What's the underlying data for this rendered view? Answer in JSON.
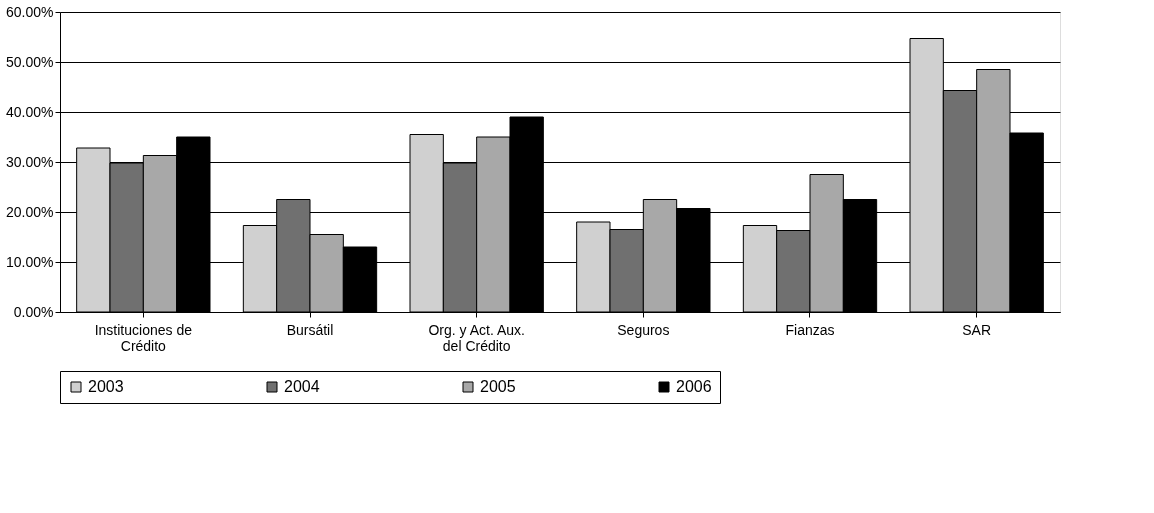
{
  "chart_data": {
    "type": "bar",
    "categories": [
      "Instituciones de Crédito",
      "Bursátil",
      "Org. y Act. Aux. del Crédito",
      "Seguros",
      "Fianzas",
      "SAR"
    ],
    "series": [
      {
        "name": "2003",
        "color": "#d0d0d0",
        "values": [
          32.8,
          17.3,
          35.5,
          18.0,
          17.3,
          54.7
        ]
      },
      {
        "name": "2004",
        "color": "#707070",
        "values": [
          29.8,
          22.5,
          29.8,
          16.5,
          16.3,
          44.3
        ]
      },
      {
        "name": "2005",
        "color": "#a8a8a8",
        "values": [
          31.3,
          15.5,
          35.0,
          22.5,
          27.5,
          48.5
        ]
      },
      {
        "name": "2006",
        "color": "#000000",
        "values": [
          35.0,
          13.0,
          39.0,
          20.7,
          22.5,
          35.8
        ]
      }
    ],
    "ylim": [
      0,
      60
    ],
    "yticks": [
      {
        "value": 0,
        "label": "0.00%"
      },
      {
        "value": 10,
        "label": "10.00%"
      },
      {
        "value": 20,
        "label": "20.00%"
      },
      {
        "value": 30,
        "label": "30.00%"
      },
      {
        "value": 40,
        "label": "40.00%"
      },
      {
        "value": 50,
        "label": "50.00%"
      },
      {
        "value": 60,
        "label": "60.00%"
      }
    ],
    "grid": "y",
    "legend": "bottom"
  }
}
